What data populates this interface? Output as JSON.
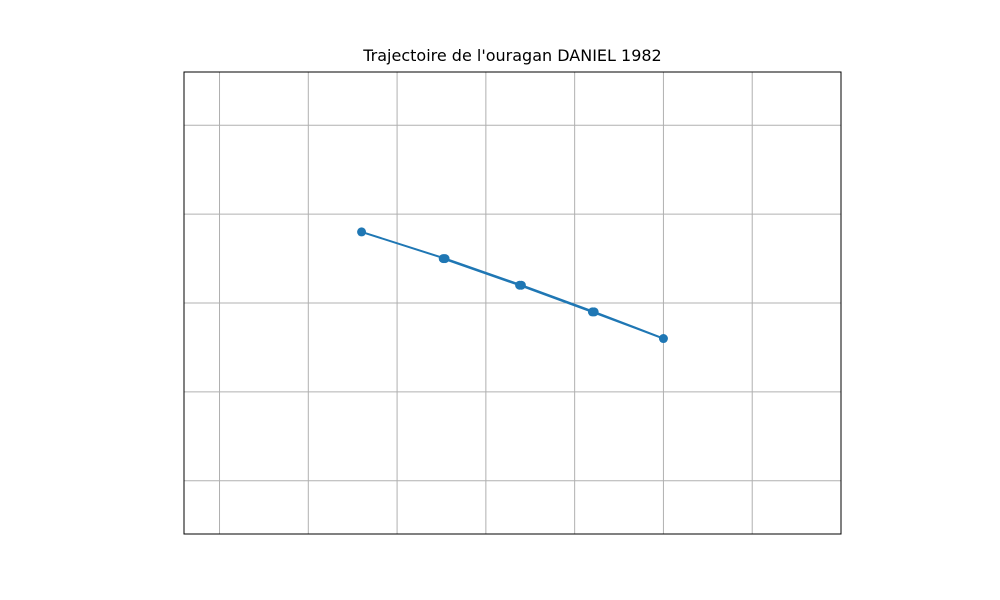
{
  "chart_data": {
    "type": "line",
    "title": "Trajectoire de l'ouragan DANIEL 1982",
    "xlabel": "",
    "ylabel": "",
    "grid": true,
    "xlim": [
      -2.0,
      35.0
    ],
    "ylim": [
      -1.0,
      25.0
    ],
    "x_gridlines": [
      0,
      5,
      10,
      15,
      20,
      25,
      30
    ],
    "y_gridlines": [
      2,
      7,
      12,
      17,
      22
    ],
    "series": [
      {
        "name": "",
        "color": "#1f77b4",
        "x": [
          8.0,
          12.7,
          17.0,
          21.1,
          25.0,
          21.0,
          16.9,
          12.6
        ],
        "y": [
          16.0,
          14.5,
          13.0,
          11.5,
          10.0,
          11.5,
          13.0,
          14.5
        ]
      }
    ]
  }
}
